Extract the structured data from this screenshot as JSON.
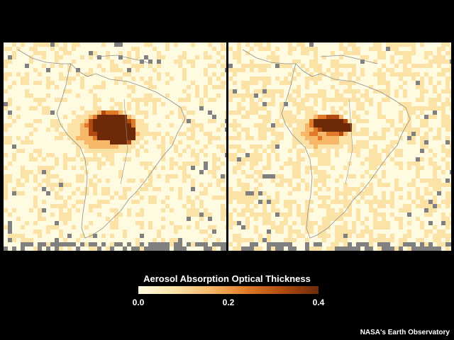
{
  "legend": {
    "title": "Aerosol Absorption Optical Thickness",
    "ticks": [
      "0.0",
      "0.2",
      "0.4"
    ],
    "range": [
      0,
      0.4
    ],
    "colors": [
      "#fffbe0",
      "#fbe3a8",
      "#f6b768",
      "#e07a28",
      "#b04a10",
      "#6e2a08"
    ]
  },
  "credit": "NASA's Earth Observatory",
  "no_data_color": "#808080",
  "panels": [
    {
      "id": "left",
      "smoke_level": 0.4,
      "hotspots": [
        [
          52,
          41,
          23,
          14,
          1.0
        ],
        [
          48,
          37,
          34,
          22,
          0.55
        ],
        [
          46,
          40,
          52,
          30,
          0.18
        ]
      ]
    },
    {
      "id": "right",
      "smoke_level": 0.36,
      "hotspots": [
        [
          50,
          38,
          18,
          8,
          0.95
        ],
        [
          45,
          36,
          28,
          12,
          0.5
        ],
        [
          42,
          40,
          40,
          24,
          0.15
        ]
      ]
    }
  ]
}
